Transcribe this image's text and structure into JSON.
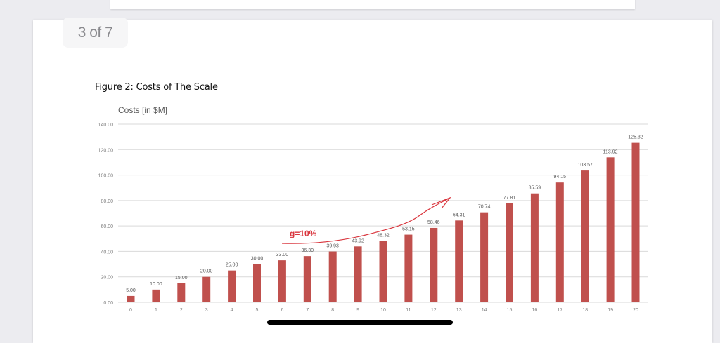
{
  "viewer": {
    "page_indicator": "3 of 7"
  },
  "document": {
    "figure_caption": "Figure 2: Costs of The Scale"
  },
  "chart_data": {
    "type": "bar",
    "title": "Costs [in $M]",
    "xlabel": "",
    "ylabel": "Costs [in $M]",
    "ylim": [
      0,
      140
    ],
    "yticks": [
      "0.00",
      "20.00",
      "40.00",
      "60.00",
      "80.00",
      "100.00",
      "120.00",
      "140.00"
    ],
    "grid": true,
    "legend": null,
    "bar_color": "#c0504d",
    "categories": [
      "0",
      "1",
      "2",
      "3",
      "4",
      "5",
      "6",
      "7",
      "8",
      "9",
      "10",
      "11",
      "12",
      "13",
      "14",
      "15",
      "16",
      "17",
      "18",
      "19",
      "20"
    ],
    "values": [
      5.0,
      10.0,
      15.0,
      20.0,
      25.0,
      30.0,
      33.0,
      36.3,
      39.93,
      43.92,
      48.32,
      53.15,
      58.46,
      64.31,
      70.74,
      77.81,
      85.59,
      94.15,
      103.57,
      113.92,
      125.32
    ],
    "value_labels": [
      "5.00",
      "10.00",
      "15.00",
      "20.00",
      "25.00",
      "30.00",
      "33.00",
      "36.30",
      "39.93",
      "43.92",
      "48.32",
      "53.15",
      "58.46",
      "64.31",
      "70.74",
      "77.81",
      "85.59",
      "94.15",
      "103.57",
      "113.92",
      "125.32"
    ],
    "annotations": [
      {
        "text": "g=10%",
        "color": "#d9363e",
        "type": "hand-drawn growth arrow from x=6 to x=13"
      }
    ]
  }
}
